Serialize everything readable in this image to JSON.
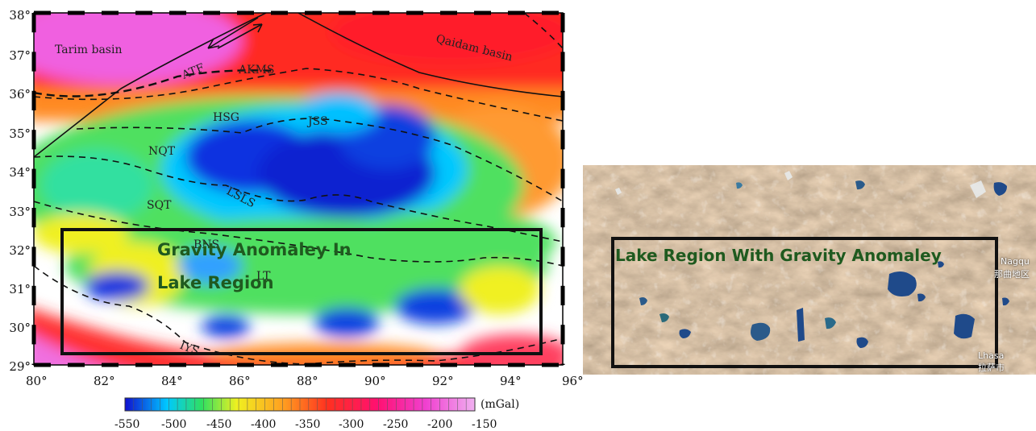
{
  "left_map": {
    "lat_ticks": [
      "38°",
      "37°",
      "36°",
      "35°",
      "34°",
      "33°",
      "32°",
      "31°",
      "30°",
      "29°"
    ],
    "lon_ticks": [
      "80°",
      "82°",
      "84°",
      "86°",
      "88°",
      "90°",
      "92°",
      "94°",
      "96°"
    ],
    "basins": {
      "tarim": "Tarim basin",
      "qaidam": "Qaidam basin"
    },
    "features": {
      "atf": "ATF",
      "akms": "AKMS",
      "hsg": "HSG",
      "jss": "JSS",
      "nqt": "NQT",
      "lsls": "LSLS",
      "sqt": "SQT",
      "bns": "BNS",
      "lt": "LT",
      "iys": "IYS"
    },
    "box_label_line1": "Gravity Anomaley In",
    "box_label_line2": "Lake Region",
    "colorbar": {
      "unit": "(mGal)",
      "ticks": [
        "-550",
        "-500",
        "-450",
        "-400",
        "-350",
        "-300",
        "-250",
        "-200",
        "-150"
      ],
      "colors": [
        "#1010d0",
        "#00c8ff",
        "#30e060",
        "#f0f020",
        "#ffa020",
        "#ff3020",
        "#ff1070",
        "#f040d0",
        "#f0b0f0"
      ]
    }
  },
  "right_map": {
    "box_label": "Lake Region With Gravity Anomaley",
    "city_nagqu": "Nagqu",
    "city_nagqu_cn": "那曲地区",
    "city_lhasa": "Lhasa",
    "city_lhasa_cn": "拉萨市"
  }
}
